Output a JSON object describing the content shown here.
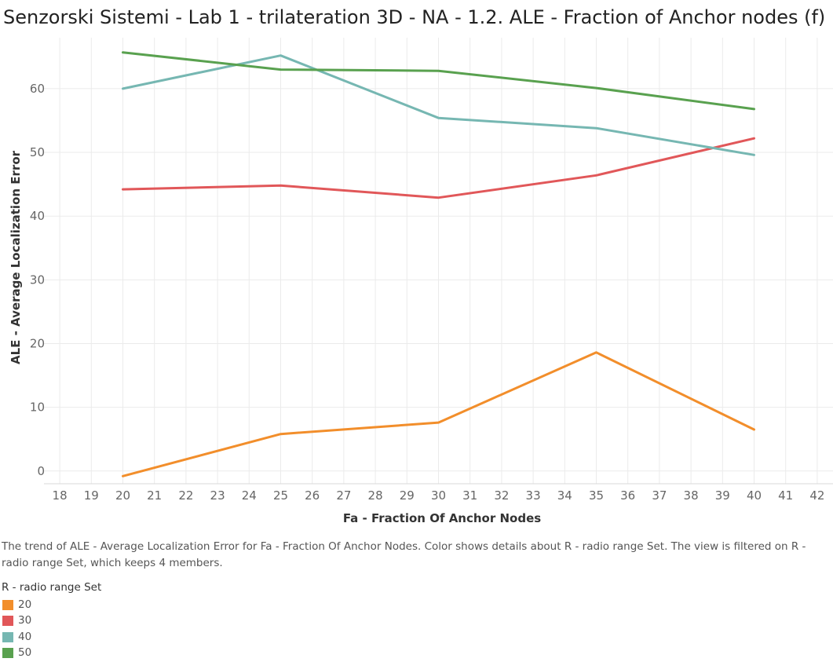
{
  "title": "Senzorski Sistemi - Lab 1 - trilateration 3D - NA - 1.2. ALE - Fraction of Anchor nodes (f)",
  "caption": "The trend of ALE - Average Localization Error for Fa - Fraction Of Anchor Nodes.  Color shows details about R - radio range Set. The view is filtered on R - radio range Set, which keeps 4 members.",
  "legend": {
    "title": "R - radio range Set",
    "items": [
      {
        "label": "20",
        "color": "#f28e2b"
      },
      {
        "label": "30",
        "color": "#e15759"
      },
      {
        "label": "40",
        "color": "#76b7b2"
      },
      {
        "label": "50",
        "color": "#59a14f"
      }
    ]
  },
  "chart_data": {
    "type": "line",
    "xlabel": "Fa - Fraction Of Anchor Nodes",
    "ylabel": "ALE - Average Localization Error",
    "xlim": [
      17.5,
      42.5
    ],
    "ylim": [
      -2,
      68
    ],
    "x_ticks": [
      18,
      19,
      20,
      21,
      22,
      23,
      24,
      25,
      26,
      27,
      28,
      29,
      30,
      31,
      32,
      33,
      34,
      35,
      36,
      37,
      38,
      39,
      40,
      41,
      42
    ],
    "y_ticks": [
      0,
      10,
      20,
      30,
      40,
      50,
      60
    ],
    "grid": true,
    "x": [
      20,
      25,
      30,
      35,
      40
    ],
    "series": [
      {
        "name": "20",
        "color": "#f28e2b",
        "values": [
          -0.8,
          5.8,
          7.6,
          18.6,
          6.5
        ]
      },
      {
        "name": "30",
        "color": "#e15759",
        "values": [
          44.2,
          44.8,
          42.9,
          46.4,
          52.2
        ]
      },
      {
        "name": "40",
        "color": "#76b7b2",
        "values": [
          60.0,
          65.2,
          55.4,
          53.8,
          49.6
        ]
      },
      {
        "name": "50",
        "color": "#59a14f",
        "values": [
          65.7,
          63.0,
          62.8,
          60.1,
          56.8
        ]
      }
    ]
  }
}
